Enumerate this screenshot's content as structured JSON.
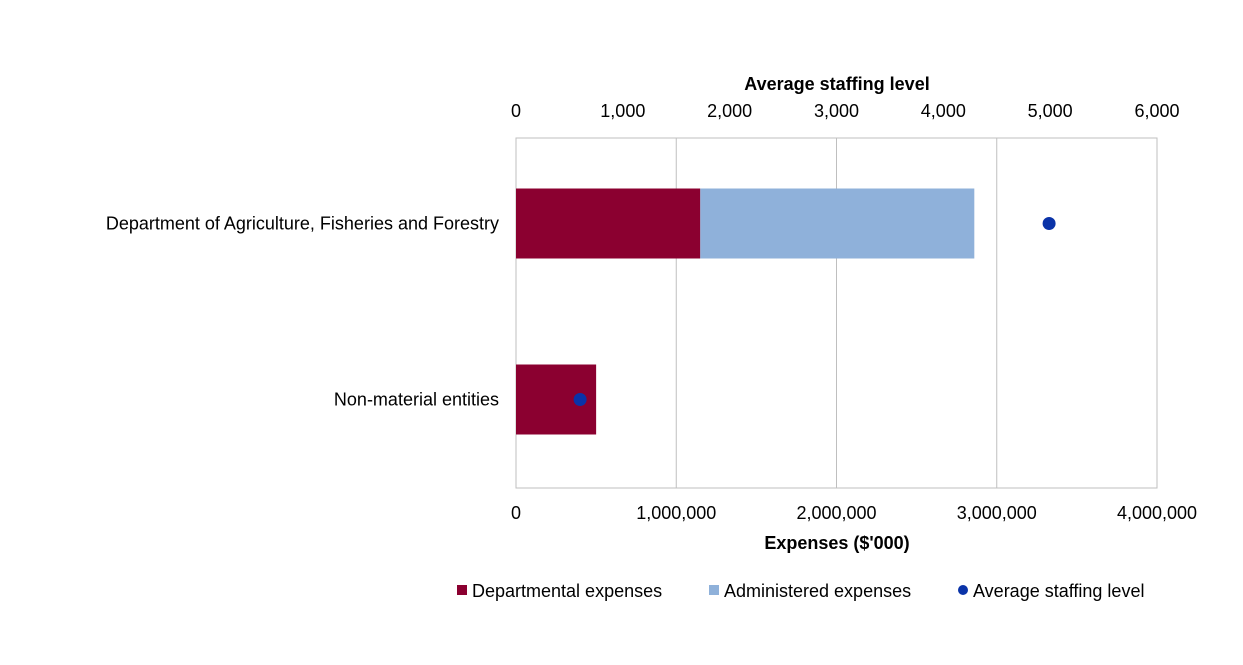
{
  "chart_data": {
    "type": "bar",
    "orientation": "horizontal",
    "stacked": true,
    "categories": [
      "Department of Agriculture, Fisheries and Forestry",
      "Non-material entities"
    ],
    "series": [
      {
        "name": "Departmental expenses",
        "axis": "bottom",
        "values": [
          1150000,
          500000
        ],
        "color": "#8B0030"
      },
      {
        "name": "Administered expenses",
        "axis": "bottom",
        "values": [
          1710000,
          0
        ],
        "color": "#8FB1DA"
      },
      {
        "name": "Average staffing level",
        "axis": "top",
        "kind": "point",
        "values": [
          4990,
          600
        ],
        "color": "#0A33A8"
      }
    ],
    "bottom_axis": {
      "title": "Expenses ($'000)",
      "range": [
        0,
        4000000
      ],
      "ticks": [
        "0",
        "1,000,000",
        "2,000,000",
        "3,000,000",
        "4,000,000"
      ]
    },
    "top_axis": {
      "title": "Average staffing level",
      "range": [
        0,
        6000
      ],
      "ticks": [
        "0",
        "1,000",
        "2,000",
        "3,000",
        "4,000",
        "5,000",
        "6,000"
      ]
    },
    "grid": true,
    "legend_position": "bottom"
  }
}
